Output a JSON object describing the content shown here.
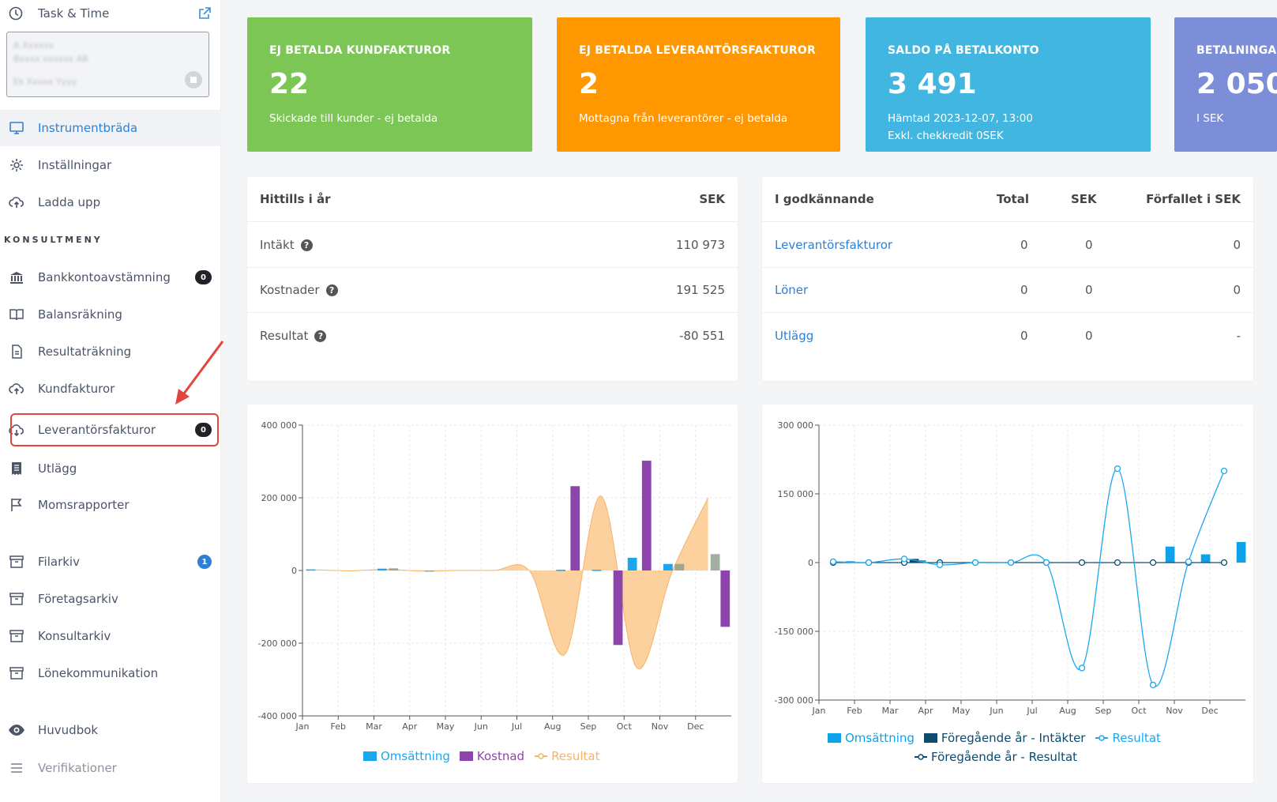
{
  "app": {
    "brand": "Task & Time",
    "company": {
      "line1": "A Xxxxxx",
      "line2": "Bxxxx xxxxxx AB",
      "line3": "Ek Xxxxx Yyyy"
    }
  },
  "sidebar": {
    "top_items": [
      {
        "label": "Instrumentbräda"
      },
      {
        "label": "Inställningar"
      },
      {
        "label": "Ladda upp"
      }
    ],
    "section_label": "KONSULTMENY",
    "items": [
      {
        "label": "Bankkontoavstämning",
        "badge": "0"
      },
      {
        "label": "Balansräkning"
      },
      {
        "label": "Resultaträkning"
      },
      {
        "label": "Kundfakturor"
      },
      {
        "label": "Leverantörsfakturor",
        "badge": "0"
      },
      {
        "label": "Utlägg"
      },
      {
        "label": "Momsrapporter"
      },
      {
        "label": "Filarkiv",
        "badge": "1"
      },
      {
        "label": "Företagsarkiv"
      },
      {
        "label": "Konsultarkiv"
      },
      {
        "label": "Lönekommunikation"
      },
      {
        "label": "Huvudbok"
      },
      {
        "label": "Verifikationer"
      }
    ]
  },
  "kpis": [
    {
      "title": "EJ BETALDA KUNDFAKTUROR",
      "value": "22",
      "sub": "Skickade till kunder - ej betalda",
      "sub2": "",
      "color": "#7cc655"
    },
    {
      "title": "EJ BETALDA LEVERANTÖRSFAKTUROR",
      "value": "2",
      "sub": "Mottagna från leverantörer - ej betalda",
      "sub2": "",
      "color": "#ff9800"
    },
    {
      "title": "SALDO PÅ BETALKONTO",
      "value": "3 491",
      "sub": "Hämtad 2023-12-07, 13:00",
      "sub2": "Exkl. chekkredit 0SEK",
      "color": "#41b6e1"
    },
    {
      "title": "BETALNINGAR",
      "value": "2 050",
      "sub": "I SEK",
      "sub2": "",
      "color": "#7d8ed8"
    }
  ],
  "ytd_table": {
    "header": {
      "label": "Hittills i år",
      "unit": "SEK"
    },
    "rows": [
      {
        "label": "Intäkt",
        "value": "110 973"
      },
      {
        "label": "Kostnader",
        "value": "191 525"
      },
      {
        "label": "Resultat",
        "value": "-80 551"
      }
    ]
  },
  "approval_table": {
    "headers": [
      "I godkännande",
      "Total",
      "SEK",
      "Förfallet i SEK"
    ],
    "rows": [
      {
        "label": "Leverantörsfakturor",
        "total": "0",
        "sek": "0",
        "overdue": "0"
      },
      {
        "label": "Löner",
        "total": "0",
        "sek": "0",
        "overdue": "0"
      },
      {
        "label": "Utlägg",
        "total": "0",
        "sek": "0",
        "overdue": "-"
      }
    ]
  },
  "chart_data": [
    {
      "type": "bar",
      "categories": [
        "Jan",
        "Feb",
        "Mar",
        "Apr",
        "May",
        "Jun",
        "Jul",
        "Aug",
        "Sep",
        "Oct",
        "Nov",
        "Dec"
      ],
      "ylim": [
        -400000,
        400000
      ],
      "yticks": [
        "400 000",
        "200 000",
        "0",
        "-200 000",
        "-400 000"
      ],
      "series": [
        {
          "name": "Omsättning",
          "color": "#1ba7ef",
          "values": [
            3000,
            0,
            5000,
            0,
            0,
            0,
            0,
            2000,
            2000,
            35000,
            18000,
            0
          ]
        },
        {
          "name": "Kostnad",
          "color": "#8e44ad",
          "values": [
            0,
            0,
            0,
            0,
            0,
            0,
            0,
            232000,
            0,
            302000,
            0,
            0
          ]
        },
        {
          "name": "Resultat",
          "color": "#f5b368",
          "values": [
            2000,
            -1000,
            3000,
            -2000,
            0,
            0,
            -1000,
            -230000,
            205000,
            -267000,
            -2000,
            200000
          ]
        }
      ],
      "extra_bars": {
        "kostnad_negative": [
          [
            "Sep",
            -205000
          ],
          [
            "Dec",
            -155000
          ]
        ],
        "previous": [
          [
            "Mar",
            6000
          ],
          [
            "Apr",
            -3000
          ],
          [
            "Nov",
            18000
          ],
          [
            "Dec",
            45000
          ]
        ]
      }
    },
    {
      "type": "bar",
      "categories": [
        "Jan",
        "Feb",
        "Mar",
        "Apr",
        "May",
        "Jun",
        "Jul",
        "Aug",
        "Sep",
        "Oct",
        "Nov",
        "Dec"
      ],
      "ylim": [
        -300000,
        300000
      ],
      "yticks": [
        "300 000",
        "150 000",
        "0",
        "-150 000",
        "-300 000"
      ],
      "series": [
        {
          "name": "Omsättning",
          "color": "#0fa2e9",
          "values": [
            3000,
            0,
            5000,
            0,
            0,
            0,
            0,
            0,
            0,
            35000,
            18000,
            45000
          ]
        },
        {
          "name": "Föregående år - Intäkter",
          "color": "#0c4a6e",
          "values": [
            0,
            0,
            8000,
            0,
            0,
            0,
            0,
            0,
            0,
            0,
            0,
            0
          ]
        },
        {
          "name": "Resultat",
          "color": "#1ba7ef",
          "values": [
            2000,
            0,
            8000,
            -5000,
            0,
            0,
            0,
            -230000,
            205000,
            -267000,
            2000,
            200000
          ]
        },
        {
          "name": "Föregående år - Resultat",
          "color": "#0c4a6e",
          "values": [
            0,
            0,
            0,
            0,
            0,
            0,
            0,
            0,
            0,
            0,
            0,
            0
          ]
        }
      ]
    }
  ]
}
